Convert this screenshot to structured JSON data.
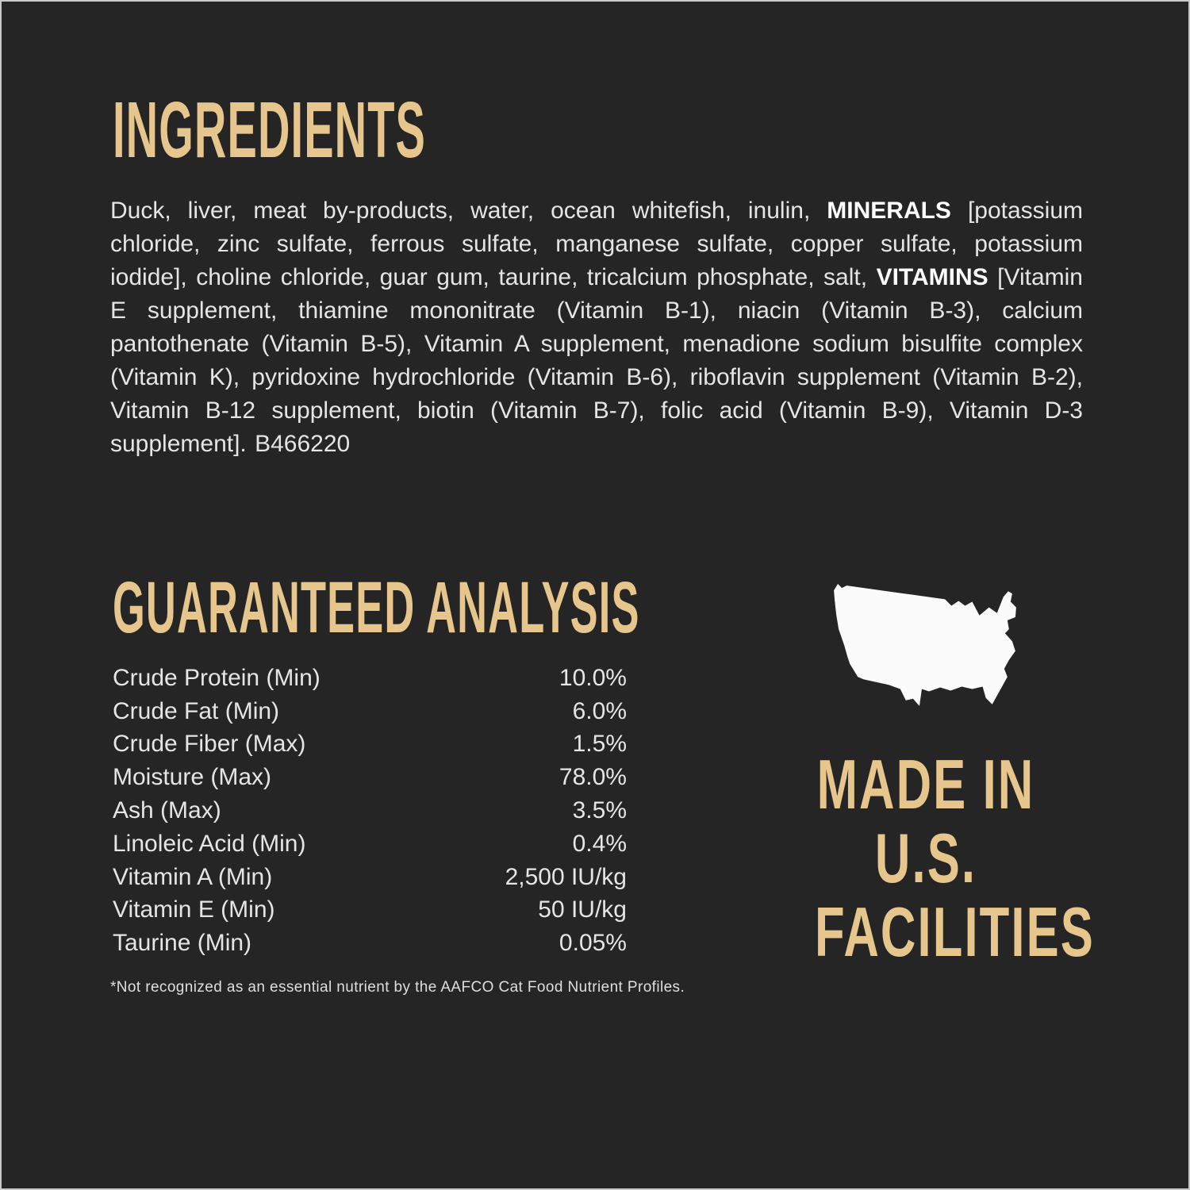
{
  "label": {
    "colors": {
      "background": "#242524",
      "accent_gold": "#e6c68c",
      "body_text": "#e5e5e5",
      "map_white": "#fbfbfb"
    },
    "ingredients": {
      "title": "INGREDIENTS",
      "paragraph_segments": [
        {
          "text": "Duck, liver, meat by-products, water, ocean whitefish, inulin, ",
          "bold": false
        },
        {
          "text": "MINERALS",
          "bold": true
        },
        {
          "text": " [potassium chloride, zinc sulfate, ferrous sulfate, manganese sulfate, copper sulfate, potassium iodide], choline chloride, guar gum, taurine, tricalcium phosphate, salt, ",
          "bold": false
        },
        {
          "text": "VITAMINS",
          "bold": true
        },
        {
          "text": " [Vitamin E supplement, thiamine mononitrate (Vitamin B-1), niacin (Vitamin B-3), calcium pantothenate (Vitamin B-5), Vitamin A supplement, menadione sodium bisulfite complex (Vitamin K), pyridoxine hydrochloride (Vitamin B-6), riboflavin supplement (Vitamin B-2), Vitamin B-12 supplement, biotin (Vitamin B-7), folic acid (Vitamin B-9), Vitamin D-3 supplement].  B466220",
          "bold": false
        }
      ]
    },
    "analysis": {
      "title": "GUARANTEED ANALYSIS",
      "rows": [
        {
          "label": "Crude Protein (Min)",
          "value": "10.0%"
        },
        {
          "label": "Crude Fat (Min)",
          "value": "6.0%"
        },
        {
          "label": "Crude Fiber (Max)",
          "value": "1.5%"
        },
        {
          "label": "Moisture (Max)",
          "value": "78.0%"
        },
        {
          "label": "Ash (Max)",
          "value": "3.5%"
        },
        {
          "label": "Linoleic Acid (Min)",
          "value": "0.4%"
        },
        {
          "label": "Vitamin A (Min)",
          "value": "2,500 IU/kg"
        },
        {
          "label": "Vitamin E (Min)",
          "value": "50 IU/kg"
        },
        {
          "label": "Taurine (Min)",
          "value": "0.05%"
        }
      ],
      "footnote": "*Not recognized as an essential nutrient by the AAFCO Cat Food Nutrient Profiles."
    },
    "made_in": {
      "lines": [
        "MADE IN",
        "U.S.",
        "FACILITIES"
      ],
      "map_icon": "usa-map-silhouette"
    }
  }
}
